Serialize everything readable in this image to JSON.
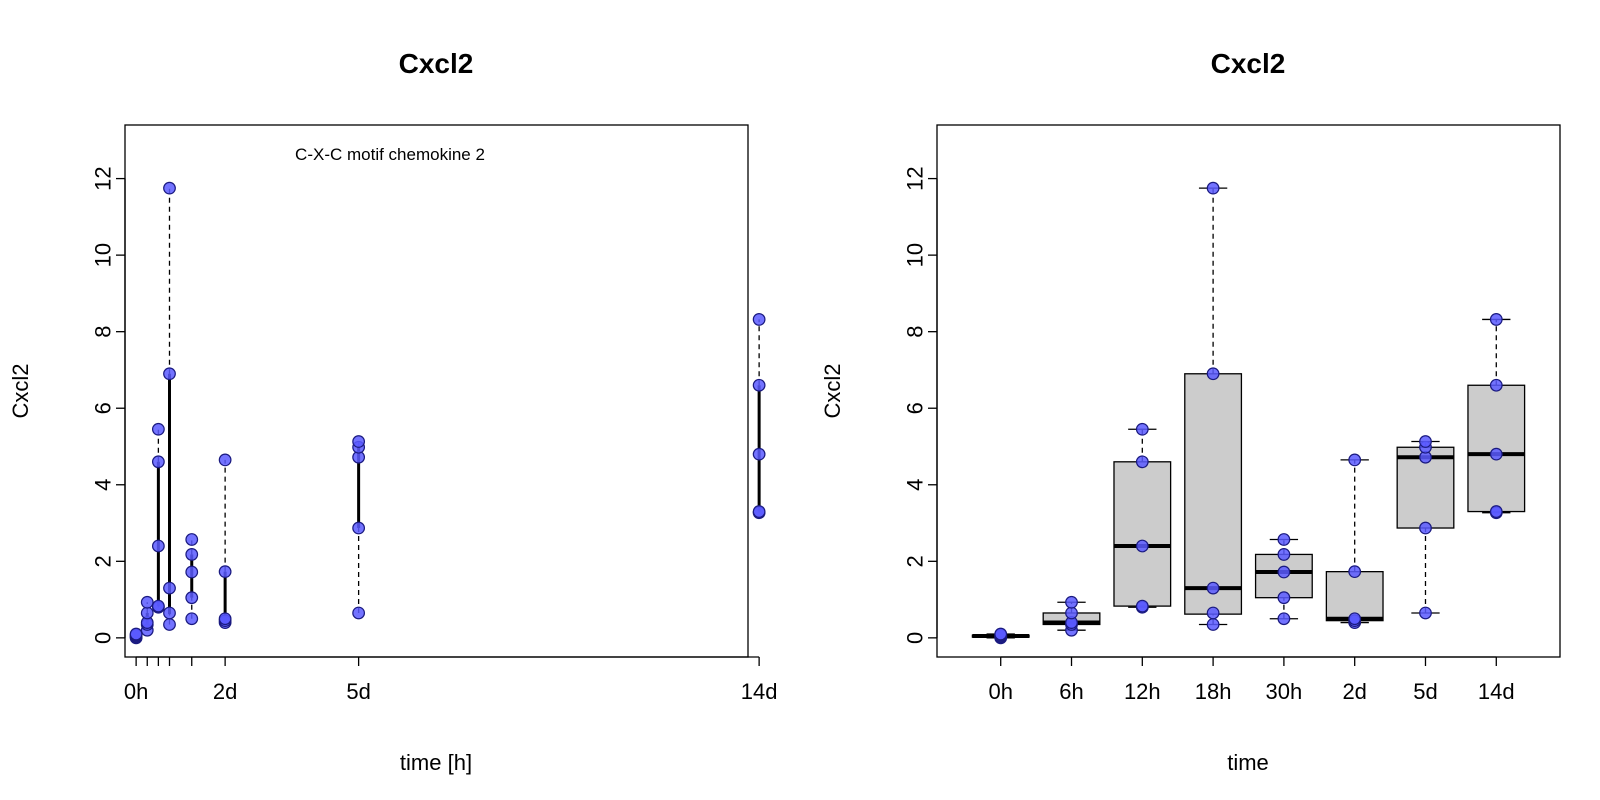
{
  "chart_data": [
    {
      "type": "scatter",
      "title": "Cxcl2",
      "xlabel": "time [h]",
      "ylabel": "Cxcl2",
      "annotation": "C-X-C motif chemokine 2",
      "ylim": [
        -0.5,
        13.4
      ],
      "xlim": [
        -6,
        330
      ],
      "y_ticks": [
        0,
        2,
        4,
        6,
        8,
        10,
        12
      ],
      "x_tick_labels": [
        {
          "x": 0,
          "label": "0h"
        },
        {
          "x": 6,
          "label": ""
        },
        {
          "x": 12,
          "label": ""
        },
        {
          "x": 18,
          "label": ""
        },
        {
          "x": 30,
          "label": ""
        },
        {
          "x": 48,
          "label": "2d"
        },
        {
          "x": 120,
          "label": "5d"
        },
        {
          "x": 336,
          "label": "14d"
        }
      ],
      "groups": [
        {
          "x": 0,
          "points": [
            0.0,
            0.03,
            0.05,
            0.08,
            0.1
          ],
          "box": [
            0.0,
            0.02,
            0.05,
            0.07,
            0.1
          ]
        },
        {
          "x": 6,
          "points": [
            0.2,
            0.35,
            0.4,
            0.65,
            0.93
          ],
          "box": [
            0.2,
            0.35,
            0.4,
            0.65,
            0.93
          ]
        },
        {
          "x": 12,
          "points": [
            0.8,
            0.83,
            2.4,
            4.6,
            5.45
          ],
          "box": [
            0.8,
            0.83,
            2.4,
            4.6,
            5.45
          ]
        },
        {
          "x": 18,
          "points": [
            0.35,
            0.65,
            1.3,
            6.9,
            11.75
          ],
          "box": [
            0.35,
            0.62,
            1.3,
            6.9,
            11.75
          ]
        },
        {
          "x": 30,
          "points": [
            0.5,
            1.05,
            1.72,
            2.18,
            2.57
          ],
          "box": [
            0.5,
            1.05,
            1.72,
            2.18,
            2.57
          ]
        },
        {
          "x": 48,
          "points": [
            0.4,
            0.45,
            0.5,
            1.73,
            4.65
          ],
          "box": [
            0.4,
            0.45,
            0.5,
            1.73,
            4.65
          ]
        },
        {
          "x": 120,
          "points": [
            0.65,
            2.87,
            4.72,
            4.98,
            5.13
          ],
          "box": [
            0.65,
            2.87,
            4.72,
            4.98,
            5.13
          ]
        },
        {
          "x": 336,
          "points": [
            3.27,
            3.3,
            4.8,
            6.6,
            8.32
          ],
          "box": [
            3.27,
            3.3,
            4.8,
            6.6,
            8.32
          ]
        }
      ]
    },
    {
      "type": "box",
      "title": "Cxcl2",
      "xlabel": "time",
      "ylabel": "Cxcl2",
      "ylim": [
        -0.5,
        13.4
      ],
      "y_ticks": [
        0,
        2,
        4,
        6,
        8,
        10,
        12
      ],
      "categories": [
        "0h",
        "6h",
        "12h",
        "18h",
        "30h",
        "2d",
        "5d",
        "14d"
      ],
      "groups": [
        {
          "points": [
            0.0,
            0.03,
            0.05,
            0.08,
            0.1
          ],
          "box": [
            0.0,
            0.02,
            0.05,
            0.07,
            0.1
          ]
        },
        {
          "points": [
            0.2,
            0.35,
            0.4,
            0.65,
            0.93
          ],
          "box": [
            0.2,
            0.35,
            0.4,
            0.65,
            0.93
          ]
        },
        {
          "points": [
            0.8,
            0.83,
            2.4,
            4.6,
            5.45
          ],
          "box": [
            0.8,
            0.83,
            2.4,
            4.6,
            5.45
          ]
        },
        {
          "points": [
            0.35,
            0.65,
            1.3,
            6.9,
            11.75
          ],
          "box": [
            0.35,
            0.62,
            1.3,
            6.9,
            11.75
          ]
        },
        {
          "points": [
            0.5,
            1.05,
            1.72,
            2.18,
            2.57
          ],
          "box": [
            0.5,
            1.05,
            1.72,
            2.18,
            2.57
          ]
        },
        {
          "points": [
            0.4,
            0.45,
            0.5,
            1.73,
            4.65
          ],
          "box": [
            0.4,
            0.45,
            0.5,
            1.73,
            4.65
          ]
        },
        {
          "points": [
            0.65,
            2.87,
            4.72,
            4.98,
            5.13
          ],
          "box": [
            0.65,
            2.87,
            4.72,
            4.98,
            5.13
          ]
        },
        {
          "points": [
            3.27,
            3.3,
            4.8,
            6.6,
            8.32
          ],
          "box": [
            3.27,
            3.3,
            4.8,
            6.6,
            8.32
          ]
        }
      ]
    }
  ],
  "colors": {
    "point_fill": "#5a5aff",
    "point_stroke": "#1a1a80",
    "box_fill": "#cccccc",
    "axis": "#000000"
  }
}
